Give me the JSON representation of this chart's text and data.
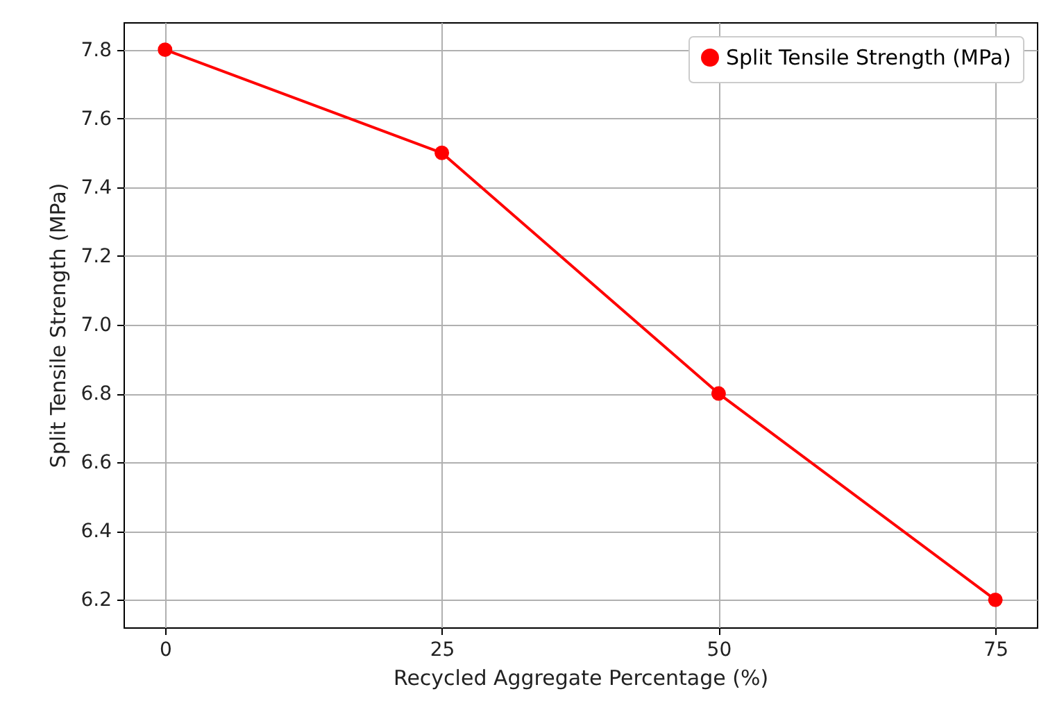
{
  "chart_data": {
    "type": "line",
    "xlabel": "Recycled Aggregate Percentage (%)",
    "ylabel": "Split Tensile Strength (MPa)",
    "x": [
      0,
      25,
      50,
      75
    ],
    "series": [
      {
        "name": "Split Tensile Strength (MPa)",
        "color": "#ff0000",
        "values": [
          7.8,
          7.5,
          6.8,
          6.2
        ]
      }
    ],
    "xlim": [
      -3.75,
      78.75
    ],
    "xticks": [
      0,
      25,
      50,
      75
    ],
    "ylim": [
      6.12,
      7.88
    ],
    "yticks": [
      6.2,
      6.4,
      6.6,
      6.8,
      {
        "value": 7,
        "label": "7.0"
      },
      7.2,
      7.4,
      7.6,
      7.8
    ],
    "grid": true,
    "legend": "top right",
    "marker": "circle",
    "line_style": "solid"
  }
}
